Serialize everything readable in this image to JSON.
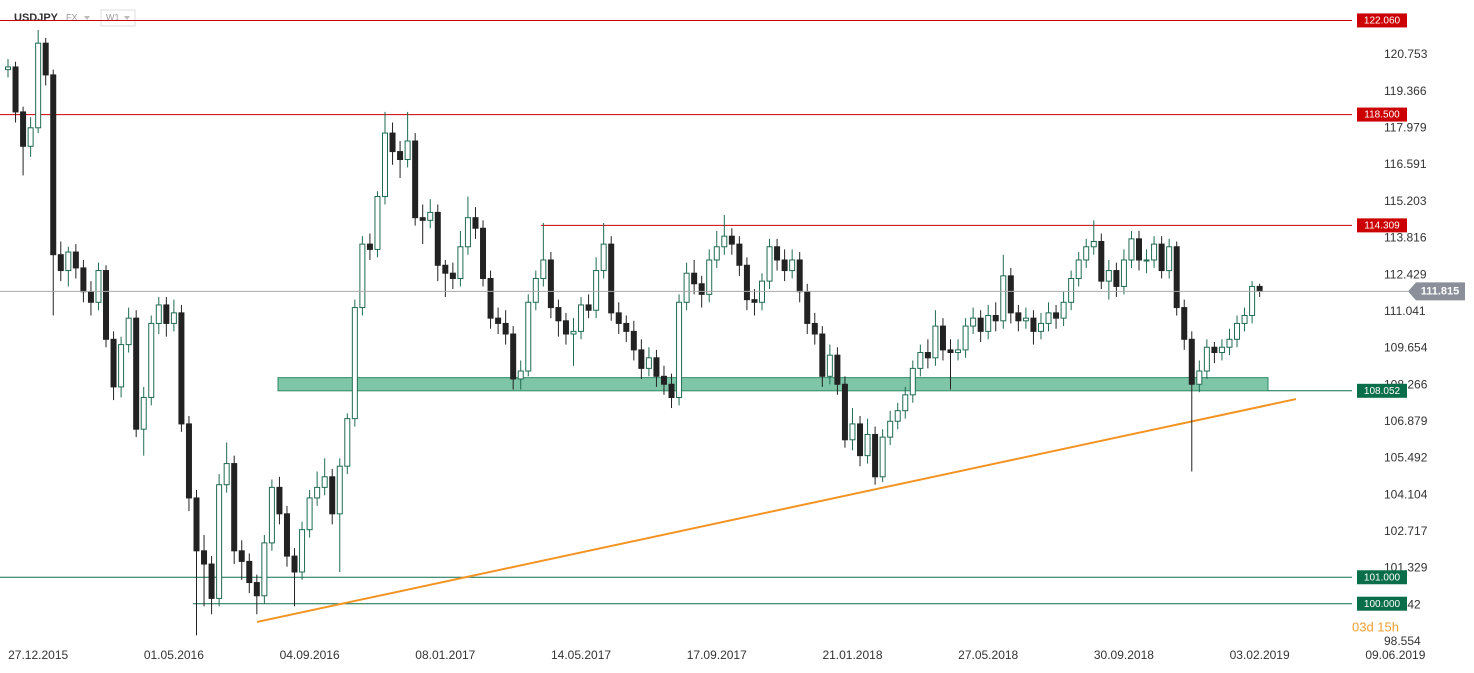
{
  "header": {
    "symbol": "USDJPY",
    "market": "FX",
    "interval": "W1"
  },
  "chart_data": {
    "type": "candlestick",
    "categories": [
      null,
      null,
      null,
      null,
      "27.12.2015",
      null,
      null,
      null,
      null,
      null,
      null,
      null,
      null,
      null,
      null,
      null,
      null,
      null,
      null,
      null,
      null,
      null,
      "01.05.2016",
      null,
      null,
      null,
      null,
      null,
      null,
      null,
      null,
      null,
      null,
      null,
      null,
      null,
      null,
      null,
      null,
      null,
      "04.09.2016",
      null,
      null,
      null,
      null,
      null,
      null,
      null,
      null,
      null,
      null,
      null,
      null,
      null,
      null,
      null,
      null,
      null,
      "08.01.2017",
      null,
      null,
      null,
      null,
      null,
      null,
      null,
      null,
      null,
      null,
      null,
      null,
      null,
      null,
      null,
      null,
      null,
      "14.05.2017",
      null,
      null,
      null,
      null,
      null,
      null,
      null,
      null,
      null,
      null,
      null,
      null,
      null,
      null,
      null,
      null,
      null,
      "17.09.2017",
      null,
      null,
      null,
      null,
      null,
      null,
      null,
      null,
      null,
      null,
      null,
      null,
      null,
      null,
      null,
      null,
      null,
      "21.01.2018",
      null,
      null,
      null,
      null,
      null,
      null,
      null,
      null,
      null,
      null,
      null,
      null,
      null,
      null,
      null,
      null,
      null,
      "27.05.2018",
      null,
      null,
      null,
      null,
      null,
      null,
      null,
      null,
      null,
      null,
      null,
      null,
      null,
      null,
      null,
      null,
      null,
      "30.09.2018",
      null,
      null,
      null,
      null,
      null,
      null,
      null,
      null,
      null,
      null,
      null,
      null,
      null,
      null,
      null,
      null,
      null,
      "03.02.2019",
      null,
      null,
      null,
      null,
      null,
      null,
      null,
      null,
      null,
      null,
      null,
      null,
      null,
      null,
      null,
      null,
      null,
      "09.06.2019"
    ],
    "open": [
      120.2,
      120.3,
      118.6,
      117.3,
      118.0,
      121.2,
      120.0,
      113.2,
      112.6,
      113.3,
      112.7,
      111.8,
      111.4,
      112.6,
      110.0,
      108.2,
      109.8,
      110.8,
      106.6,
      107.8,
      110.6,
      111.3,
      110.6,
      111.0,
      106.8,
      104.0,
      102.0,
      101.5,
      100.2,
      104.5,
      105.3,
      102.0,
      101.6,
      100.8,
      100.3,
      102.3,
      104.4,
      103.4,
      101.8,
      101.2,
      102.8,
      104.0,
      104.4,
      104.8,
      103.4,
      105.2,
      107.0,
      111.2,
      113.6,
      113.4,
      115.4,
      117.8,
      117.1,
      116.8,
      117.5,
      114.6,
      114.5,
      114.8,
      112.8,
      112.5,
      112.3,
      113.5,
      114.6,
      114.2,
      112.3,
      110.8,
      110.6,
      110.2,
      108.5,
      108.8,
      111.4,
      112.3,
      113.0,
      111.2,
      110.7,
      110.2,
      110.3,
      111.3,
      111.1,
      112.6,
      113.6,
      111.0,
      110.6,
      110.3,
      109.6,
      108.9,
      109.3,
      108.6,
      108.3,
      107.8,
      111.4,
      112.5,
      112.1,
      111.7,
      113.0,
      113.5,
      113.9,
      113.6,
      112.8,
      111.5,
      111.4,
      112.2,
      113.5,
      113.0,
      112.6,
      113.0,
      111.8,
      110.6,
      110.2,
      108.6,
      109.4,
      108.3,
      106.2,
      106.8,
      105.6,
      106.4,
      104.8,
      106.3,
      106.9,
      107.3,
      107.9,
      108.9,
      109.5,
      109.3,
      110.5,
      109.6,
      109.5,
      109.6,
      110.5,
      110.8,
      110.3,
      110.9,
      110.7,
      112.4,
      111.0,
      110.7,
      110.8,
      110.3,
      110.6,
      111.0,
      110.8,
      111.4,
      112.3,
      113.0,
      113.5,
      113.7,
      112.2,
      112.6,
      112.0,
      113.0,
      113.8,
      113.0,
      113.0,
      113.6,
      112.6,
      113.5,
      111.2,
      110.0,
      108.3,
      108.8,
      109.7,
      109.5,
      109.7,
      110.0,
      110.6,
      110.9,
      112.0,
      null,
      null,
      null,
      null,
      null,
      null,
      null,
      null,
      null,
      null,
      null,
      null,
      null,
      null,
      null,
      null,
      null,
      null
    ],
    "high": [
      120.6,
      120.5,
      118.8,
      118.4,
      121.7,
      121.4,
      120.2,
      113.7,
      113.5,
      113.6,
      113.0,
      112.2,
      112.9,
      112.8,
      110.3,
      110.1,
      111.2,
      111.1,
      108.2,
      110.9,
      111.6,
      111.6,
      111.5,
      111.3,
      107.1,
      104.3,
      102.6,
      101.8,
      104.9,
      106.1,
      105.6,
      102.4,
      101.9,
      101.1,
      102.6,
      104.7,
      104.8,
      103.7,
      102.1,
      103.1,
      104.3,
      105.0,
      105.5,
      105.1,
      105.5,
      107.2,
      111.5,
      113.9,
      114.0,
      115.6,
      118.6,
      118.2,
      117.5,
      118.6,
      117.8,
      115.1,
      115.3,
      115.1,
      113.0,
      112.9,
      114.1,
      115.4,
      115.0,
      114.5,
      112.6,
      111.2,
      111.1,
      110.5,
      109.2,
      111.7,
      112.6,
      114.4,
      113.3,
      111.5,
      111.0,
      110.8,
      111.6,
      111.7,
      113.1,
      114.4,
      113.9,
      111.4,
      110.9,
      110.7,
      110.0,
      109.7,
      109.6,
      109.0,
      108.7,
      111.7,
      112.9,
      113.0,
      112.4,
      113.4,
      114.1,
      114.7,
      114.2,
      113.9,
      113.1,
      111.9,
      112.5,
      113.8,
      113.8,
      113.4,
      113.4,
      113.3,
      112.1,
      111.0,
      110.5,
      109.8,
      109.7,
      108.6,
      107.4,
      107.1,
      107.0,
      106.7,
      106.6,
      107.3,
      107.6,
      108.2,
      109.2,
      109.8,
      110.0,
      111.1,
      110.8,
      110.0,
      110.0,
      110.8,
      111.2,
      111.1,
      111.3,
      111.4,
      113.2,
      112.7,
      111.3,
      111.2,
      111.1,
      111.0,
      111.4,
      111.3,
      111.8,
      112.6,
      113.3,
      113.8,
      114.5,
      114.0,
      113.0,
      112.9,
      113.4,
      114.1,
      114.1,
      113.4,
      113.9,
      113.9,
      113.8,
      113.7,
      111.5,
      110.3,
      109.2,
      110.0,
      109.9,
      110.0,
      110.4,
      110.9,
      111.2,
      112.2,
      112.1,
      null,
      null,
      null,
      null,
      null,
      null,
      null,
      null,
      null,
      null,
      null,
      null,
      null,
      null,
      null,
      null,
      null,
      null
    ],
    "low": [
      119.9,
      118.2,
      116.2,
      116.9,
      117.8,
      119.6,
      110.9,
      112.2,
      112.0,
      112.3,
      111.4,
      110.9,
      111.1,
      109.7,
      107.7,
      107.8,
      109.5,
      106.3,
      105.6,
      107.5,
      110.2,
      110.1,
      110.3,
      106.5,
      103.5,
      98.8,
      99.9,
      99.6,
      99.9,
      104.2,
      101.5,
      100.9,
      100.4,
      99.6,
      100.0,
      102.0,
      103.0,
      101.4,
      99.9,
      100.9,
      102.5,
      103.7,
      104.1,
      103.0,
      101.2,
      104.9,
      106.7,
      110.9,
      113.0,
      113.1,
      115.1,
      116.6,
      116.1,
      116.5,
      114.3,
      113.6,
      114.2,
      112.2,
      111.6,
      111.9,
      112.0,
      113.2,
      113.8,
      112.0,
      110.4,
      110.2,
      109.8,
      108.1,
      108.1,
      108.6,
      111.1,
      112.0,
      110.8,
      110.1,
      109.8,
      109.0,
      110.0,
      110.8,
      110.8,
      112.3,
      110.7,
      110.2,
      109.9,
      109.2,
      108.5,
      108.6,
      108.2,
      107.9,
      107.4,
      107.5,
      111.1,
      111.7,
      111.2,
      111.4,
      112.7,
      113.2,
      113.2,
      112.4,
      111.1,
      110.9,
      111.1,
      111.9,
      112.6,
      112.2,
      112.3,
      111.4,
      110.2,
      109.8,
      108.2,
      108.3,
      107.9,
      105.9,
      105.8,
      105.2,
      105.3,
      104.5,
      104.6,
      106.0,
      106.6,
      107.0,
      107.6,
      108.6,
      108.9,
      109.0,
      109.2,
      108.1,
      109.2,
      109.3,
      110.2,
      109.9,
      110.0,
      110.3,
      110.4,
      110.6,
      110.3,
      110.4,
      109.8,
      110.0,
      110.3,
      110.4,
      110.5,
      111.1,
      112.0,
      112.7,
      113.2,
      111.9,
      111.5,
      111.6,
      111.7,
      112.7,
      112.6,
      112.5,
      112.7,
      112.3,
      112.3,
      110.9,
      109.6,
      105.0,
      108.0,
      108.5,
      109.1,
      109.2,
      109.4,
      109.7,
      110.3,
      110.6,
      111.6,
      null,
      null,
      null,
      null,
      null,
      null,
      null,
      null,
      null,
      null,
      null,
      null,
      null,
      null,
      null,
      null,
      null,
      null
    ],
    "close": [
      120.3,
      118.6,
      117.3,
      118.0,
      121.2,
      120.0,
      113.2,
      112.6,
      113.3,
      112.7,
      111.8,
      111.4,
      112.6,
      110.0,
      108.2,
      109.8,
      110.8,
      106.6,
      107.8,
      110.6,
      111.3,
      110.6,
      111.0,
      106.8,
      104.0,
      102.0,
      101.5,
      100.2,
      104.5,
      105.3,
      102.0,
      101.6,
      100.8,
      100.3,
      102.3,
      104.4,
      103.4,
      101.8,
      101.2,
      102.8,
      104.0,
      104.4,
      104.8,
      103.4,
      105.2,
      107.0,
      111.2,
      113.6,
      113.4,
      115.4,
      117.8,
      117.1,
      116.8,
      117.5,
      114.6,
      114.5,
      114.8,
      112.8,
      112.5,
      112.3,
      113.5,
      114.6,
      114.2,
      112.3,
      110.8,
      110.6,
      110.2,
      108.5,
      108.8,
      111.4,
      112.3,
      113.0,
      111.2,
      110.7,
      110.2,
      110.3,
      111.3,
      111.1,
      112.6,
      113.6,
      111.0,
      110.6,
      110.3,
      109.6,
      108.9,
      109.3,
      108.6,
      108.3,
      107.8,
      111.4,
      112.5,
      112.1,
      111.7,
      113.0,
      113.5,
      113.9,
      113.6,
      112.8,
      111.5,
      111.4,
      112.2,
      113.5,
      113.0,
      112.6,
      113.0,
      111.8,
      110.6,
      110.2,
      108.6,
      109.4,
      108.3,
      106.2,
      106.8,
      105.6,
      106.4,
      104.8,
      106.3,
      106.9,
      107.3,
      107.9,
      108.9,
      109.5,
      109.3,
      110.5,
      109.6,
      109.5,
      109.6,
      110.5,
      110.8,
      110.3,
      110.9,
      110.7,
      112.4,
      111.0,
      110.7,
      110.8,
      110.3,
      110.6,
      111.0,
      110.8,
      111.4,
      112.3,
      113.0,
      113.5,
      113.7,
      112.2,
      112.6,
      112.0,
      113.0,
      113.8,
      113.0,
      113.0,
      113.6,
      112.6,
      113.5,
      111.2,
      110.0,
      108.3,
      108.8,
      109.7,
      109.5,
      109.7,
      110.0,
      110.6,
      110.9,
      112.0,
      111.815,
      null,
      null,
      null,
      null,
      null,
      null,
      null,
      null,
      null,
      null,
      null,
      null,
      null,
      null,
      null,
      null,
      null,
      null
    ],
    "up_color": "#1f6b52",
    "down_color": "#222222",
    "ylim": [
      98.438,
      122.833
    ],
    "yticks": [
      120.753,
      119.366,
      117.979,
      116.591,
      115.203,
      113.816,
      112.429,
      111.041,
      109.654,
      108.266,
      106.879,
      105.492,
      104.104,
      102.717,
      101.329,
      99.942,
      98.554
    ],
    "levels": [
      {
        "value": 122.06,
        "label": "122.060",
        "color": "#cc0000"
      },
      {
        "value": 118.5,
        "label": "118.500",
        "color": "#cc0000"
      },
      {
        "value": 114.309,
        "color": "#cc0000"
      },
      {
        "value": 108.052,
        "color": "#0a6e4a"
      },
      {
        "value": 101,
        "label": "101.000",
        "color": "#0a6e4a"
      },
      {
        "value": 100,
        "label": "100.000",
        "color": "#0a6e4a"
      }
    ],
    "zone": {
      "from": 108.052,
      "to": 108.55,
      "color": "#5fb893",
      "edge": "#2f8a64"
    },
    "trendline": {
      "from": 99.31,
      "to": 107.74,
      "color": "#f39321"
    },
    "last_color": "#8a8f99",
    "countdown": "03d 15h",
    "countdown_color": "#f0a030"
  }
}
